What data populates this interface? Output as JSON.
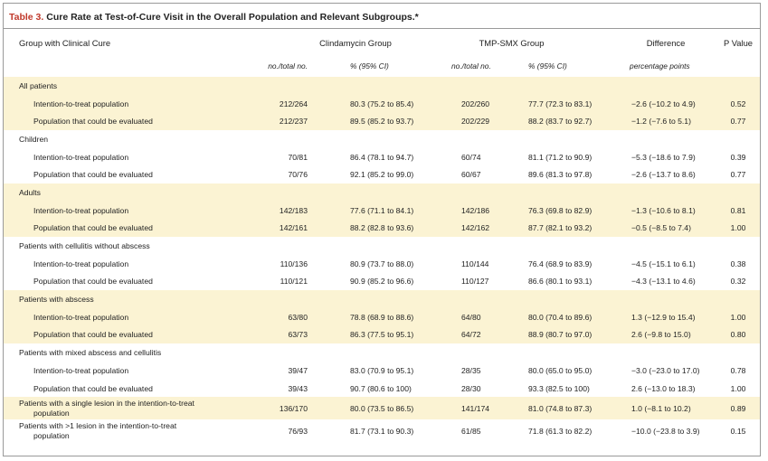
{
  "title": {
    "label": "Table 3.",
    "text": "Cure Rate at Test-of-Cure Visit in the Overall Population and Relevant Subgroups.*"
  },
  "headers": {
    "group": "Group with Clinical Cure",
    "clindamycin": "Clindamycin Group",
    "tmp_smx": "TMP-SMX Group",
    "difference": "Difference",
    "p_value": "P Value",
    "no_total_1": "no./total no.",
    "pct_ci_1": "% (95% CI)",
    "no_total_2": "no./total no.",
    "pct_ci_2": "% (95% CI)",
    "pct_points": "percentage points"
  },
  "rows": [
    {
      "label": "All patients"
    },
    {
      "label": "Intention-to-treat population",
      "c_n": "212/264",
      "c_pct": "80.3 (75.2 to 85.4)",
      "t_n": "202/260",
      "t_pct": "77.7 (72.3 to 83.1)",
      "diff": "−2.6 (−10.2 to 4.9)",
      "p": "0.52"
    },
    {
      "label": "Population that could be evaluated",
      "c_n": "212/237",
      "c_pct": "89.5 (85.2 to 93.7)",
      "t_n": "202/229",
      "t_pct": "88.2 (83.7 to 92.7)",
      "diff": "−1.2 (−7.6 to 5.1)",
      "p": "0.77"
    },
    {
      "label": "Children"
    },
    {
      "label": "Intention-to-treat population",
      "c_n": "70/81",
      "c_pct": "86.4 (78.1 to 94.7)",
      "t_n": "60/74",
      "t_pct": "81.1 (71.2 to 90.9)",
      "diff": "−5.3 (−18.6 to 7.9)",
      "p": "0.39"
    },
    {
      "label": "Population that could be evaluated",
      "c_n": "70/76",
      "c_pct": "92.1 (85.2 to 99.0)",
      "t_n": "60/67",
      "t_pct": "89.6 (81.3 to 97.8)",
      "diff": "−2.6 (−13.7 to 8.6)",
      "p": "0.77"
    },
    {
      "label": "Adults"
    },
    {
      "label": "Intention-to-treat population",
      "c_n": "142/183",
      "c_pct": "77.6 (71.1 to 84.1)",
      "t_n": "142/186",
      "t_pct": "76.3 (69.8 to 82.9)",
      "diff": "−1.3 (−10.6 to 8.1)",
      "p": "0.81"
    },
    {
      "label": "Population that could be evaluated",
      "c_n": "142/161",
      "c_pct": "88.2 (82.8 to 93.6)",
      "t_n": "142/162",
      "t_pct": "87.7 (82.1 to 93.2)",
      "diff": "−0.5 (−8.5 to 7.4)",
      "p": "1.00"
    },
    {
      "label": "Patients with cellulitis without abscess"
    },
    {
      "label": "Intention-to-treat population",
      "c_n": "110/136",
      "c_pct": "80.9 (73.7 to 88.0)",
      "t_n": "110/144",
      "t_pct": "76.4 (68.9 to 83.9)",
      "diff": "−4.5 (−15.1 to 6.1)",
      "p": "0.38"
    },
    {
      "label": "Population that could be evaluated",
      "c_n": "110/121",
      "c_pct": "90.9 (85.2 to 96.6)",
      "t_n": "110/127",
      "t_pct": "86.6 (80.1 to 93.1)",
      "diff": "−4.3 (−13.1 to 4.6)",
      "p": "0.32"
    },
    {
      "label": "Patients with abscess"
    },
    {
      "label": "Intention-to-treat population",
      "c_n": "63/80",
      "c_pct": "78.8 (68.9 to 88.6)",
      "t_n": "64/80",
      "t_pct": "80.0 (70.4 to 89.6)",
      "diff": "1.3 (−12.9 to 15.4)",
      "p": "1.00"
    },
    {
      "label": "Population that could be evaluated",
      "c_n": "63/73",
      "c_pct": "86.3 (77.5 to 95.1)",
      "t_n": "64/72",
      "t_pct": "88.9 (80.7 to 97.0)",
      "diff": "2.6 (−9.8 to 15.0)",
      "p": "0.80"
    },
    {
      "label": "Patients with mixed abscess and cellulitis"
    },
    {
      "label": "Intention-to-treat population",
      "c_n": "39/47",
      "c_pct": "83.0 (70.9 to 95.1)",
      "t_n": "28/35",
      "t_pct": "80.0 (65.0 to 95.0)",
      "diff": "−3.0 (−23.0 to 17.0)",
      "p": "0.78"
    },
    {
      "label": "Population that could be evaluated",
      "c_n": "39/43",
      "c_pct": "90.7 (80.6 to 100)",
      "t_n": "28/30",
      "t_pct": "93.3 (82.5 to 100)",
      "diff": "2.6 (−13.0 to 18.3)",
      "p": "1.00"
    },
    {
      "label_line1": "Patients with a single lesion in the intention-to-treat",
      "label_line2": "population",
      "c_n": "136/170",
      "c_pct": "80.0 (73.5 to 86.5)",
      "t_n": "141/174",
      "t_pct": "81.0 (74.8 to 87.3)",
      "diff": "1.0 (−8.1 to 10.2)",
      "p": "0.89"
    },
    {
      "label_line1": "Patients with >1 lesion in the intention-to-treat",
      "label_line2": "population",
      "c_n": "76/93",
      "c_pct": "81.7 (73.1 to 90.3)",
      "t_n": "61/85",
      "t_pct": "71.8 (61.3 to 82.2)",
      "diff": "−10.0 (−23.8 to 3.9)",
      "p": "0.15"
    }
  ],
  "colors": {
    "title_label": "#c0392b",
    "shade": "#fbf3d3",
    "border": "#9a9a9a"
  }
}
